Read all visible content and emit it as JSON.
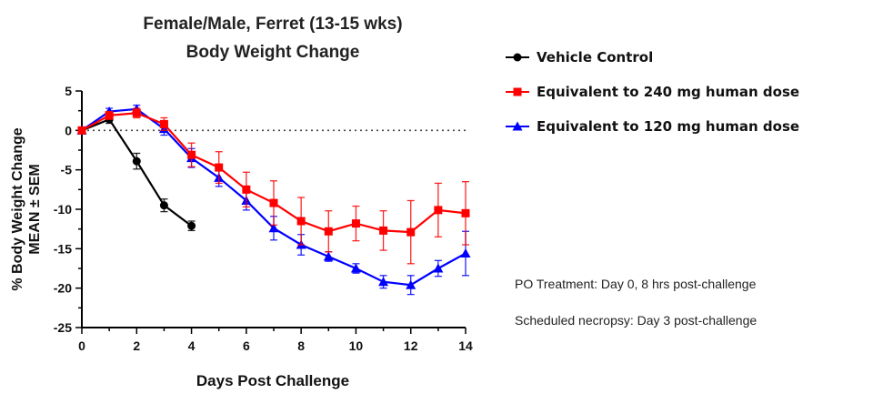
{
  "chart_data": {
    "type": "line",
    "title": "Female/Male, Ferret (13-15 wks)",
    "subtitle": "Body Weight Change",
    "xlabel": "Days Post Challenge",
    "ylabel_line1": "% Body Weight Change",
    "ylabel_line2": "MEAN ± SEM",
    "xlim": [
      0,
      14
    ],
    "ylim": [
      -25,
      5
    ],
    "xticks": [
      0,
      2,
      4,
      6,
      8,
      10,
      12,
      14
    ],
    "yticks": [
      5,
      0,
      -5,
      -10,
      -15,
      -20,
      -25
    ],
    "reference_line": 0,
    "grid": false,
    "legend_position": "right",
    "series": [
      {
        "name": "Vehicle Control",
        "color": "#000000",
        "marker": "circle",
        "x": [
          0,
          1,
          2,
          3,
          4
        ],
        "y": [
          0,
          1.4,
          -3.9,
          -9.5,
          -12.1
        ],
        "err": [
          0.2,
          0.5,
          1.0,
          0.8,
          0.6
        ]
      },
      {
        "name": "Equivalent to 240 mg human dose",
        "color": "#ff0000",
        "marker": "square",
        "x": [
          0,
          1,
          2,
          3,
          4,
          5,
          6,
          7,
          8,
          9,
          10,
          11,
          12,
          13,
          14
        ],
        "y": [
          0,
          1.9,
          2.2,
          0.8,
          -3.1,
          -4.7,
          -7.5,
          -9.2,
          -11.5,
          -12.8,
          -11.8,
          -12.7,
          -12.9,
          -10.1,
          -10.5
        ],
        "err": [
          0.2,
          0.5,
          0.6,
          0.8,
          1.5,
          2.0,
          2.2,
          2.8,
          3.0,
          2.6,
          2.2,
          2.5,
          4.0,
          3.4,
          4.0
        ]
      },
      {
        "name": "Equivalent to 120 mg human dose",
        "color": "#0000ff",
        "marker": "triangle",
        "x": [
          0,
          1,
          2,
          3,
          4,
          5,
          6,
          7,
          8,
          9,
          10,
          11,
          12,
          13,
          14
        ],
        "y": [
          0,
          2.4,
          2.7,
          0.2,
          -3.5,
          -6.0,
          -8.9,
          -12.4,
          -14.5,
          -16.0,
          -17.5,
          -19.2,
          -19.6,
          -17.5,
          -15.6
        ],
        "err": [
          0.2,
          0.4,
          0.5,
          0.8,
          1.2,
          1.1,
          1.2,
          1.5,
          1.3,
          0.6,
          0.6,
          0.8,
          1.2,
          1.0,
          2.8
        ]
      }
    ]
  },
  "notes": {
    "treatment": "PO Treatment: Day 0, 8 hrs post-challenge",
    "necropsy": "Scheduled necropsy: Day 3 post-challenge"
  }
}
